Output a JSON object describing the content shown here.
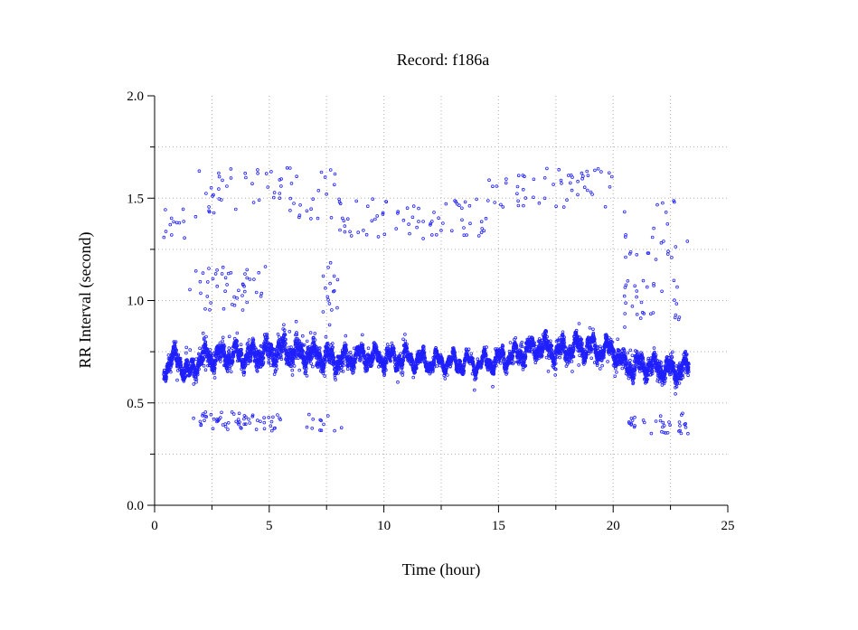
{
  "chart_data": {
    "type": "scatter",
    "title": "Record:  f186a",
    "xlabel": "Time (hour)",
    "ylabel": "RR Interval (second)",
    "xlim": [
      0,
      25
    ],
    "ylim": [
      0.0,
      2.0
    ],
    "x_ticks": [
      0,
      5,
      10,
      15,
      20,
      25
    ],
    "x_tick_labels": [
      "0",
      "5",
      "10",
      "15",
      "20",
      "25"
    ],
    "y_ticks": [
      0.0,
      0.5,
      1.0,
      1.5,
      2.0
    ],
    "y_tick_labels": [
      "0.0",
      "0.5",
      "1.0",
      "1.5",
      "2.0"
    ],
    "grid": true,
    "marker": "open-circle",
    "series_color": "#1f1fff",
    "trend_profile": {
      "x": [
        0.4,
        1.0,
        1.5,
        2.0,
        3.0,
        4.0,
        5.0,
        5.5,
        6.0,
        7.0,
        8.0,
        9.0,
        10.0,
        11.0,
        12.0,
        13.0,
        14.0,
        15.0,
        16.0,
        16.8,
        17.5,
        18.5,
        19.5,
        20.0,
        20.5,
        21.5,
        22.5,
        23.3
      ],
      "mean_rr": [
        0.68,
        0.72,
        0.63,
        0.72,
        0.73,
        0.73,
        0.75,
        0.76,
        0.75,
        0.73,
        0.71,
        0.73,
        0.72,
        0.72,
        0.7,
        0.7,
        0.69,
        0.71,
        0.74,
        0.78,
        0.75,
        0.77,
        0.76,
        0.76,
        0.68,
        0.68,
        0.66,
        0.67
      ],
      "spread": [
        0.06,
        0.07,
        0.07,
        0.07,
        0.07,
        0.08,
        0.09,
        0.1,
        0.09,
        0.08,
        0.08,
        0.06,
        0.06,
        0.05,
        0.05,
        0.04,
        0.04,
        0.05,
        0.06,
        0.07,
        0.07,
        0.07,
        0.06,
        0.07,
        0.07,
        0.07,
        0.08,
        0.07
      ]
    },
    "outlier_clusters": [
      {
        "x_range": [
          0.4,
          1.5
        ],
        "y_range": [
          1.3,
          1.45
        ],
        "count": 12
      },
      {
        "x_range": [
          1.5,
          8.0
        ],
        "y_range": [
          1.4,
          1.65
        ],
        "count": 60
      },
      {
        "x_range": [
          8.0,
          14.5
        ],
        "y_range": [
          1.3,
          1.5
        ],
        "count": 70
      },
      {
        "x_range": [
          14.5,
          20.0
        ],
        "y_range": [
          1.45,
          1.65
        ],
        "count": 55
      },
      {
        "x_range": [
          20.3,
          23.3
        ],
        "y_range": [
          1.2,
          1.5
        ],
        "count": 25
      },
      {
        "x_range": [
          1.5,
          5.0
        ],
        "y_range": [
          0.95,
          1.18
        ],
        "count": 45
      },
      {
        "x_range": [
          7.3,
          8.0
        ],
        "y_range": [
          0.9,
          1.2
        ],
        "count": 15
      },
      {
        "x_range": [
          20.4,
          23.0
        ],
        "y_range": [
          0.9,
          1.1
        ],
        "count": 30
      },
      {
        "x_range": [
          1.6,
          5.5
        ],
        "y_range": [
          0.36,
          0.46
        ],
        "count": 60
      },
      {
        "x_range": [
          6.5,
          8.2
        ],
        "y_range": [
          0.36,
          0.46
        ],
        "count": 12
      },
      {
        "x_range": [
          20.5,
          23.3
        ],
        "y_range": [
          0.35,
          0.45
        ],
        "count": 35
      }
    ]
  }
}
